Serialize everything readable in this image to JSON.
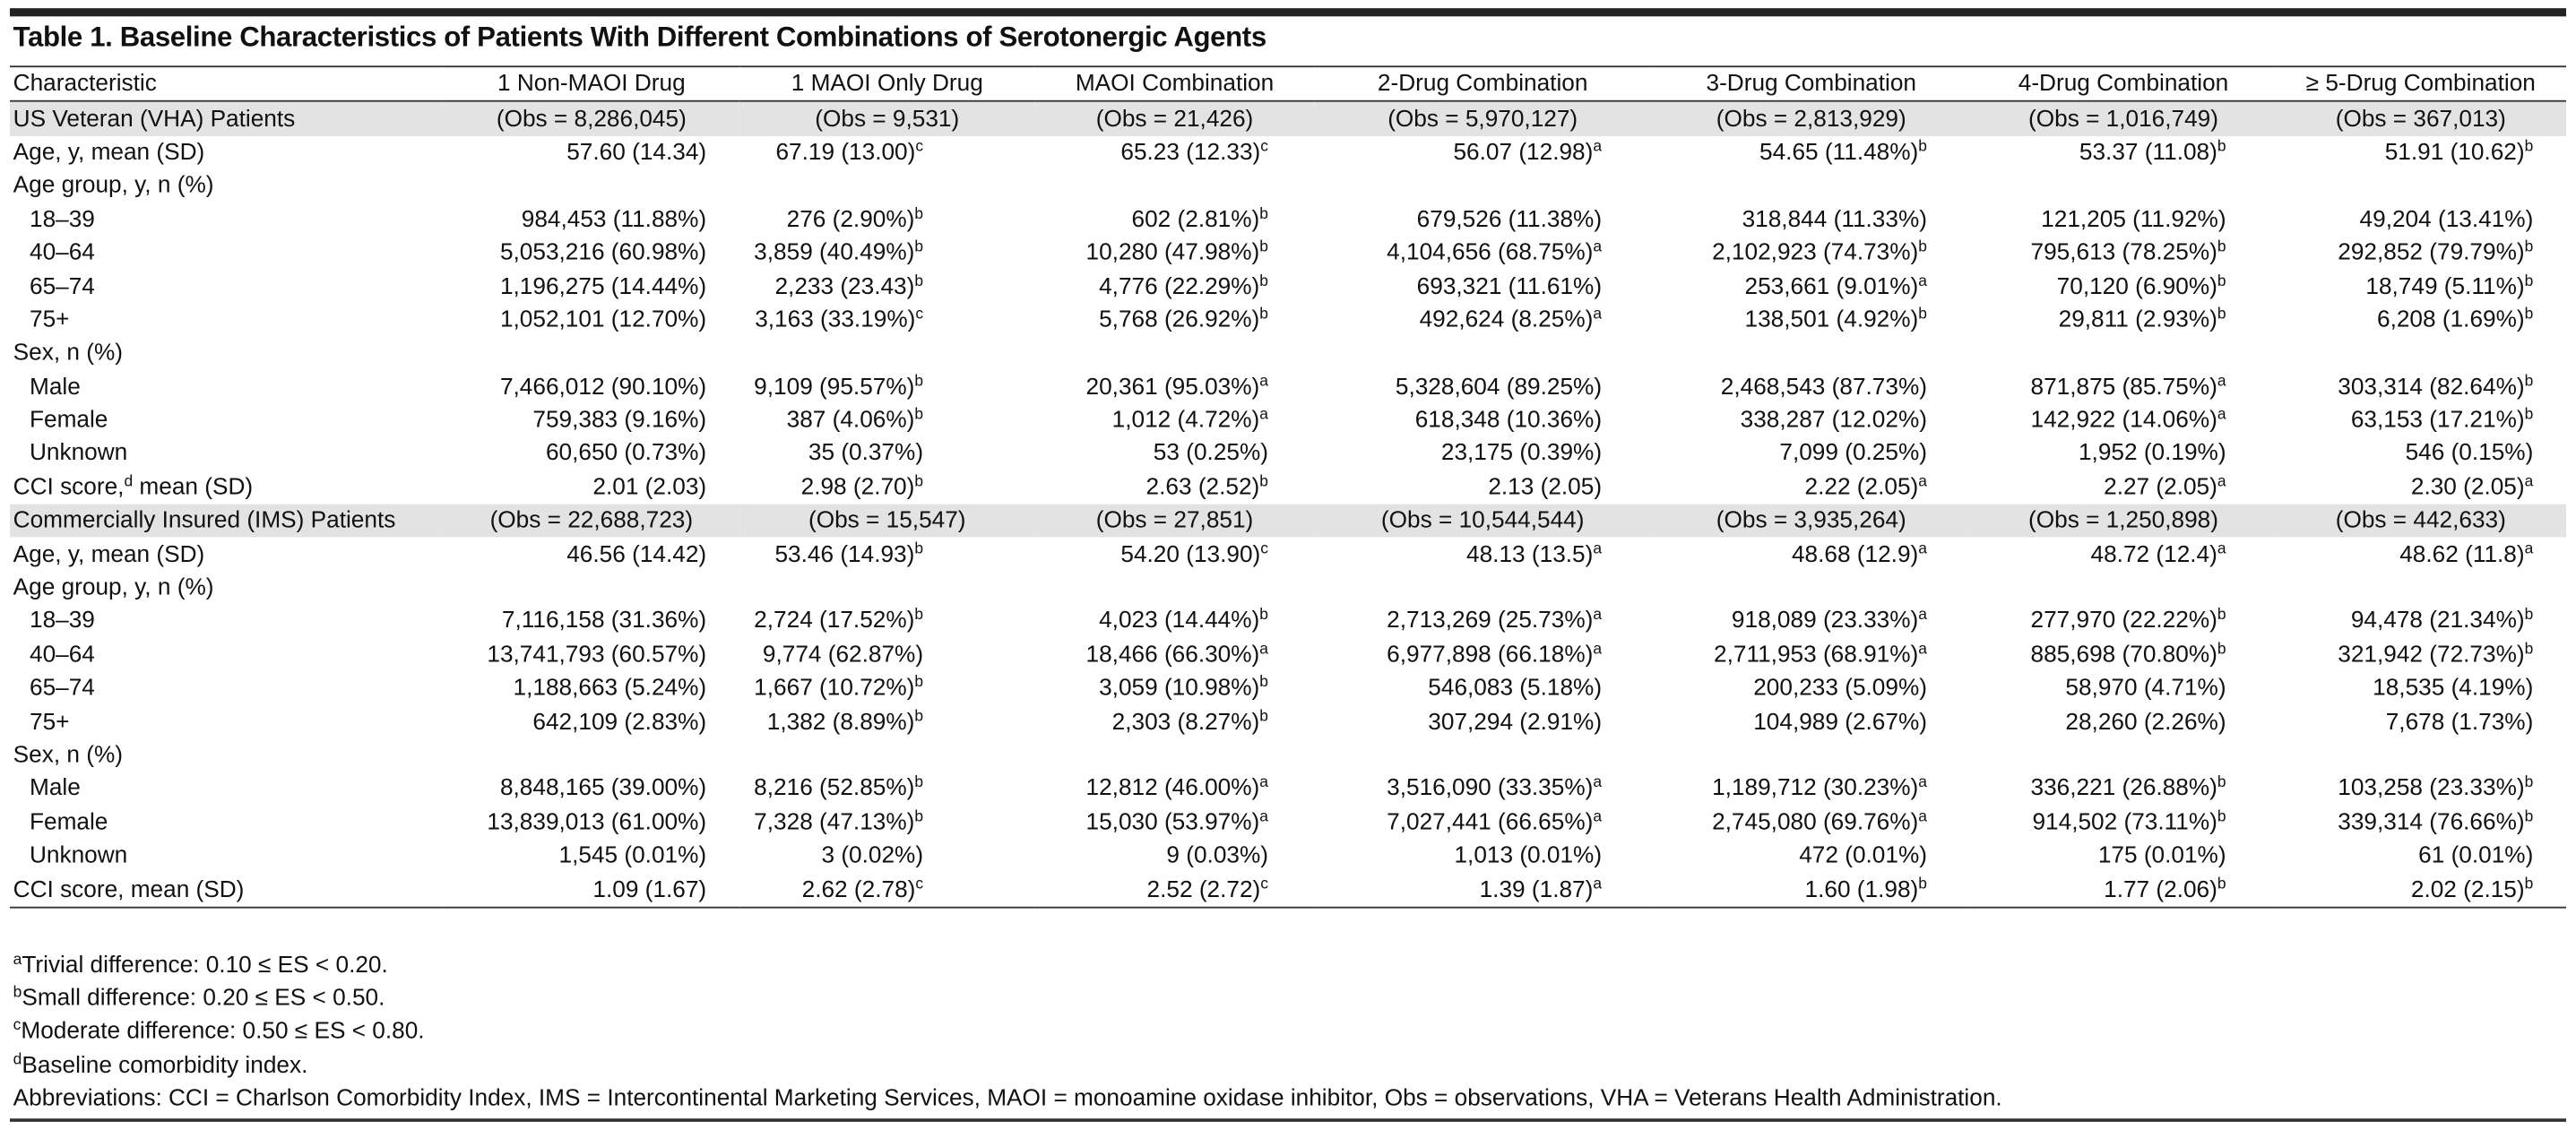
{
  "title": "Table 1. Baseline Characteristics of Patients With Different Combinations of Serotonergic Agents",
  "header": [
    "Characteristic",
    "1 Non-MAOI Drug",
    "1 MAOI Only Drug",
    "MAOI Combination",
    "2-Drug Combination",
    "3-Drug Combination",
    "4-Drug Combination",
    "≥ 5-Drug Combination"
  ],
  "sections": [
    {
      "label": "US Veteran (VHA) Patients",
      "obs": [
        "(Obs = 8,286,045)",
        "(Obs = 9,531)",
        "(Obs = 21,426)",
        "(Obs = 5,970,127)",
        "(Obs = 2,813,929)",
        "(Obs = 1,016,749)",
        "(Obs = 367,013)"
      ],
      "rows": [
        {
          "label": "Age, y, mean (SD)",
          "cells": [
            "57.60 (14.34)",
            {
              "text": "67.19 (13.00)",
              "sup": "c"
            },
            {
              "text": "65.23 (12.33)",
              "sup": "c"
            },
            {
              "text": "56.07 (12.98)",
              "sup": "a"
            },
            {
              "text": "54.65 (11.48%)",
              "sup": "b"
            },
            {
              "text": "53.37 (11.08)",
              "sup": "b"
            },
            {
              "text": "51.91 (10.62)",
              "sup": "b"
            }
          ]
        },
        {
          "label": "Age group, y, n (%)",
          "subrows": [
            {
              "label": "18–39",
              "cells": [
                "984,453 (11.88%)",
                {
                  "text": "276 (2.90%)",
                  "sup": "b"
                },
                {
                  "text": "602 (2.81%)",
                  "sup": "b"
                },
                "679,526 (11.38%)",
                "318,844 (11.33%)",
                "121,205 (11.92%)",
                "49,204 (13.41%)"
              ]
            },
            {
              "label": "40–64",
              "cells": [
                "5,053,216 (60.98%)",
                {
                  "text": "3,859 (40.49%)",
                  "sup": "b"
                },
                {
                  "text": "10,280 (47.98%)",
                  "sup": "b"
                },
                {
                  "text": "4,104,656 (68.75%)",
                  "sup": "a"
                },
                {
                  "text": "2,102,923 (74.73%)",
                  "sup": "b"
                },
                {
                  "text": "795,613 (78.25%)",
                  "sup": "b"
                },
                {
                  "text": "292,852 (79.79%)",
                  "sup": "b"
                }
              ]
            },
            {
              "label": "65–74",
              "cells": [
                "1,196,275 (14.44%)",
                {
                  "text": "2,233 (23.43)",
                  "sup": "b"
                },
                {
                  "text": "4,776 (22.29%)",
                  "sup": "b"
                },
                "693,321 (11.61%)",
                {
                  "text": "253,661 (9.01%)",
                  "sup": "a"
                },
                {
                  "text": "70,120 (6.90%)",
                  "sup": "b"
                },
                {
                  "text": "18,749 (5.11%)",
                  "sup": "b"
                }
              ]
            },
            {
              "label": "75+",
              "cells": [
                "1,052,101 (12.70%)",
                {
                  "text": "3,163 (33.19%)",
                  "sup": "c"
                },
                {
                  "text": "5,768 (26.92%)",
                  "sup": "b"
                },
                {
                  "text": "492,624 (8.25%)",
                  "sup": "a"
                },
                {
                  "text": "138,501 (4.92%)",
                  "sup": "b"
                },
                {
                  "text": "29,811 (2.93%)",
                  "sup": "b"
                },
                {
                  "text": "6,208 (1.69%)",
                  "sup": "b"
                }
              ]
            }
          ]
        },
        {
          "label": "Sex, n (%)",
          "subrows": [
            {
              "label": "Male",
              "cells": [
                "7,466,012 (90.10%)",
                {
                  "text": "9,109 (95.57%)",
                  "sup": "b"
                },
                {
                  "text": "20,361 (95.03%)",
                  "sup": "a"
                },
                "5,328,604 (89.25%)",
                "2,468,543 (87.73%)",
                {
                  "text": "871,875 (85.75%)",
                  "sup": "a"
                },
                {
                  "text": "303,314 (82.64%)",
                  "sup": "b"
                }
              ]
            },
            {
              "label": "Female",
              "cells": [
                "759,383 (9.16%)",
                {
                  "text": "387 (4.06%)",
                  "sup": "b"
                },
                {
                  "text": "1,012 (4.72%)",
                  "sup": "a"
                },
                "618,348 (10.36%)",
                "338,287 (12.02%)",
                {
                  "text": "142,922 (14.06%)",
                  "sup": "a"
                },
                {
                  "text": "63,153 (17.21%)",
                  "sup": "b"
                }
              ]
            },
            {
              "label": "Unknown",
              "cells": [
                "60,650 (0.73%)",
                "35 (0.37%)",
                "53 (0.25%)",
                "23,175 (0.39%)",
                "7,099 (0.25%)",
                "1,952 (0.19%)",
                "546 (0.15%)"
              ]
            }
          ]
        },
        {
          "label": {
            "text": "CCI score,",
            "sup": "d",
            "rest": " mean (SD)"
          },
          "cells": [
            "2.01 (2.03)",
            {
              "text": "2.98 (2.70)",
              "sup": "b"
            },
            {
              "text": "2.63 (2.52)",
              "sup": "b"
            },
            "2.13 (2.05)",
            {
              "text": "2.22 (2.05)",
              "sup": "a"
            },
            {
              "text": "2.27 (2.05)",
              "sup": "a"
            },
            {
              "text": "2.30 (2.05)",
              "sup": "a"
            }
          ]
        }
      ]
    },
    {
      "label": "Commercially Insured (IMS) Patients",
      "obs": [
        "(Obs = 22,688,723)",
        "(Obs = 15,547)",
        "(Obs = 27,851)",
        "(Obs = 10,544,544)",
        "(Obs = 3,935,264)",
        "(Obs = 1,250,898)",
        "(Obs = 442,633)"
      ],
      "rows": [
        {
          "label": "Age, y, mean (SD)",
          "cells": [
            "46.56 (14.42)",
            {
              "text": "53.46 (14.93)",
              "sup": "b"
            },
            {
              "text": "54.20 (13.90)",
              "sup": "c"
            },
            {
              "text": "48.13 (13.5)",
              "sup": "a"
            },
            {
              "text": "48.68 (12.9)",
              "sup": "a"
            },
            {
              "text": "48.72 (12.4)",
              "sup": "a"
            },
            {
              "text": "48.62 (11.8)",
              "sup": "a"
            }
          ]
        },
        {
          "label": "Age group, y, n (%)",
          "subrows": [
            {
              "label": "18–39",
              "cells": [
                "7,116,158 (31.36%)",
                {
                  "text": "2,724 (17.52%)",
                  "sup": "b"
                },
                {
                  "text": "4,023 (14.44%)",
                  "sup": "b"
                },
                {
                  "text": "2,713,269 (25.73%)",
                  "sup": "a"
                },
                {
                  "text": "918,089 (23.33%)",
                  "sup": "a"
                },
                {
                  "text": "277,970 (22.22%)",
                  "sup": "b"
                },
                {
                  "text": "94,478 (21.34%)",
                  "sup": "b"
                }
              ]
            },
            {
              "label": "40–64",
              "cells": [
                "13,741,793 (60.57%)",
                "9,774 (62.87%)",
                {
                  "text": "18,466 (66.30%)",
                  "sup": "a"
                },
                {
                  "text": "6,977,898 (66.18%)",
                  "sup": "a"
                },
                {
                  "text": "2,711,953 (68.91%)",
                  "sup": "a"
                },
                {
                  "text": "885,698 (70.80%)",
                  "sup": "b"
                },
                {
                  "text": "321,942 (72.73%)",
                  "sup": "b"
                }
              ]
            },
            {
              "label": "65–74",
              "cells": [
                "1,188,663 (5.24%)",
                {
                  "text": "1,667 (10.72%)",
                  "sup": "b"
                },
                {
                  "text": "3,059 (10.98%)",
                  "sup": "b"
                },
                "546,083 (5.18%)",
                "200,233 (5.09%)",
                "58,970 (4.71%)",
                "18,535 (4.19%)"
              ]
            },
            {
              "label": "75+",
              "cells": [
                "642,109 (2.83%)",
                {
                  "text": "1,382 (8.89%)",
                  "sup": "b"
                },
                {
                  "text": "2,303 (8.27%)",
                  "sup": "b"
                },
                "307,294 (2.91%)",
                "104,989 (2.67%)",
                "28,260 (2.26%)",
                "7,678 (1.73%)"
              ]
            }
          ]
        },
        {
          "label": "Sex, n (%)",
          "subrows": [
            {
              "label": "Male",
              "cells": [
                "8,848,165 (39.00%)",
                {
                  "text": "8,216 (52.85%)",
                  "sup": "b"
                },
                {
                  "text": "12,812 (46.00%)",
                  "sup": "a"
                },
                {
                  "text": "3,516,090 (33.35%)",
                  "sup": "a"
                },
                {
                  "text": "1,189,712 (30.23%)",
                  "sup": "a"
                },
                {
                  "text": "336,221 (26.88%)",
                  "sup": "b"
                },
                {
                  "text": "103,258 (23.33%)",
                  "sup": "b"
                }
              ]
            },
            {
              "label": "Female",
              "cells": [
                "13,839,013 (61.00%)",
                {
                  "text": "7,328 (47.13%)",
                  "sup": "b"
                },
                {
                  "text": "15,030 (53.97%)",
                  "sup": "a"
                },
                {
                  "text": "7,027,441 (66.65%)",
                  "sup": "a"
                },
                {
                  "text": "2,745,080 (69.76%)",
                  "sup": "a"
                },
                {
                  "text": "914,502 (73.11%)",
                  "sup": "b"
                },
                {
                  "text": "339,314 (76.66%)",
                  "sup": "b"
                }
              ]
            },
            {
              "label": "Unknown",
              "cells": [
                "1,545 (0.01%)",
                "3 (0.02%)",
                "9 (0.03%)",
                "1,013 (0.01%)",
                "472 (0.01%)",
                "175 (0.01%)",
                "61 (0.01%)"
              ]
            }
          ]
        },
        {
          "label": "CCI score, mean (SD)",
          "cells": [
            "1.09 (1.67)",
            {
              "text": "2.62 (2.78)",
              "sup": "c"
            },
            {
              "text": "2.52 (2.72)",
              "sup": "c"
            },
            {
              "text": "1.39 (1.87)",
              "sup": "a"
            },
            {
              "text": "1.60 (1.98)",
              "sup": "b"
            },
            {
              "text": "1.77 (2.06)",
              "sup": "b"
            },
            {
              "text": "2.02 (2.15)",
              "sup": "b"
            }
          ]
        }
      ]
    }
  ],
  "footnotes": [
    {
      "sup": "a",
      "rest": "Trivial difference: 0.10 ≤ ES < 0.20."
    },
    {
      "sup": "b",
      "rest": "Small difference: 0.20 ≤ ES < 0.50."
    },
    {
      "sup": "c",
      "rest": "Moderate difference: 0.50 ≤ ES < 0.80."
    },
    {
      "sup": "d",
      "rest": "Baseline comorbidity index."
    },
    {
      "text": "Abbreviations: CCI = Charlson Comorbidity Index, IMS = Intercontinental Marketing Services, MAOI = monoamine oxidase inhibitor, Obs = observations, VHA = Veterans Health Administration."
    }
  ]
}
